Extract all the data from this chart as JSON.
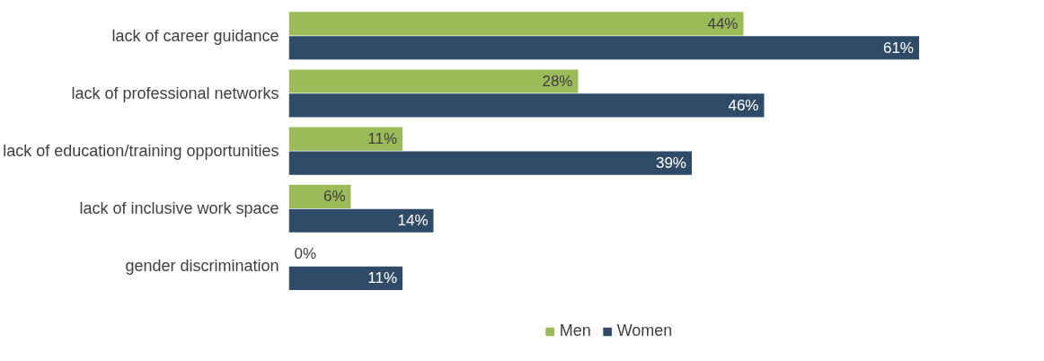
{
  "chart_data": {
    "type": "bar",
    "orientation": "horizontal",
    "categories": [
      "lack of career guidance",
      "lack of professional networks",
      "lack of education/training opportunities",
      "lack of inclusive work space",
      "gender discrimination"
    ],
    "series": [
      {
        "name": "Men",
        "color": "#9bbb59",
        "values": [
          44,
          28,
          11,
          6,
          0
        ],
        "value_labels": [
          "44%",
          "28%",
          "11%",
          "6%",
          "0%"
        ]
      },
      {
        "name": "Women",
        "color": "#2f4b68",
        "values": [
          61,
          46,
          39,
          14,
          11
        ],
        "value_labels": [
          "61%",
          "46%",
          "39%",
          "14%",
          "11%"
        ]
      }
    ],
    "legend": "bottom"
  }
}
